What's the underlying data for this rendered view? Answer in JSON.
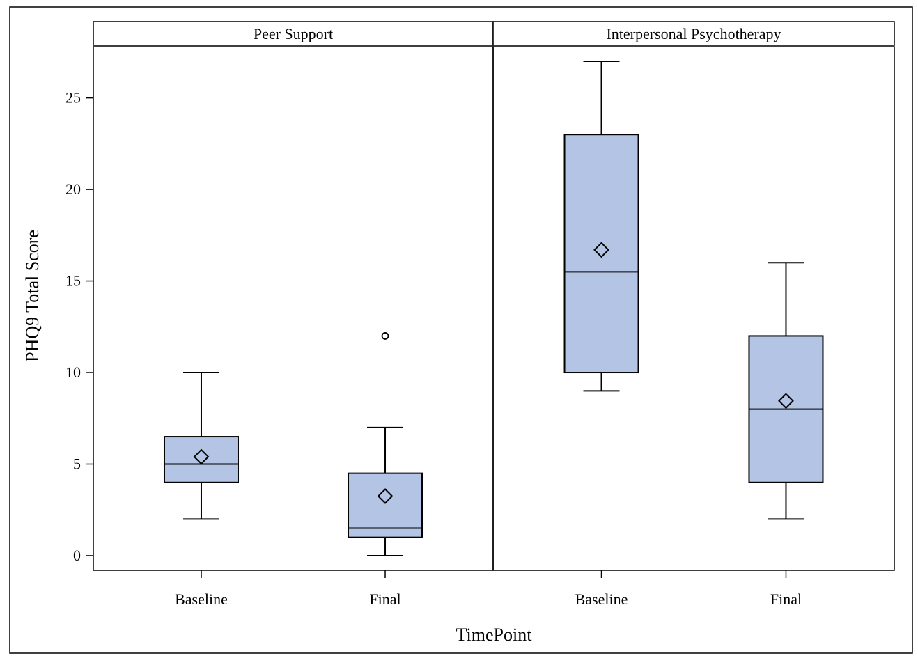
{
  "chart_data": {
    "type": "box",
    "ylabel": "PHQ9 Total Score",
    "xlabel": "TimePoint",
    "yticks": [
      0,
      5,
      10,
      15,
      20,
      25
    ],
    "ylim": [
      -0.8,
      27.8
    ],
    "categories": [
      "Baseline",
      "Final"
    ],
    "box_color": "#b4c4e4",
    "panels": [
      {
        "title": "Peer Support",
        "boxes": [
          {
            "category": "Baseline",
            "min": 2,
            "q1": 4,
            "median": 5,
            "q3": 6.5,
            "max": 10,
            "mean": 5.4,
            "outliers": []
          },
          {
            "category": "Final",
            "min": 0,
            "q1": 1,
            "median": 1.5,
            "q3": 4.5,
            "max": 7,
            "mean": 3.25,
            "outliers": [
              12
            ]
          }
        ]
      },
      {
        "title": "Interpersonal Psychotherapy",
        "boxes": [
          {
            "category": "Baseline",
            "min": 9,
            "q1": 10,
            "median": 15.5,
            "q3": 23,
            "max": 27,
            "mean": 16.7,
            "outliers": []
          },
          {
            "category": "Final",
            "min": 2,
            "q1": 4,
            "median": 8,
            "q3": 12,
            "max": 16,
            "mean": 8.45,
            "outliers": []
          }
        ]
      }
    ]
  }
}
